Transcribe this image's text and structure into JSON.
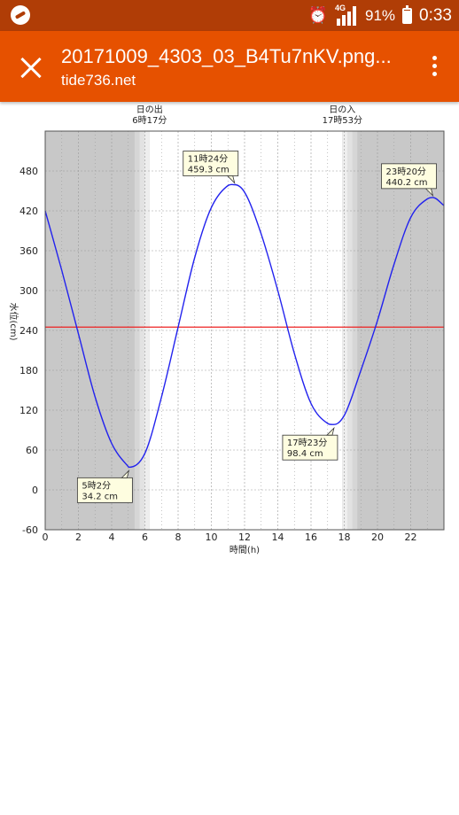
{
  "status_bar": {
    "network": "4G",
    "battery": "91%",
    "battery_level": 0.91,
    "time": "0:33",
    "icons": [
      "app-logo-icon",
      "alarm-icon",
      "signal-icon",
      "battery-icon"
    ]
  },
  "app_bar": {
    "title": "20171009_4303_03_B4Tu7nKV.png...",
    "subtitle": "tide736.net",
    "icons": [
      "close-icon",
      "more-vert-icon"
    ],
    "color": "#e65100"
  },
  "chart_data": {
    "type": "line",
    "xlabel": "時間(h)",
    "ylabel": "水位(cm)",
    "xlim": [
      0,
      24
    ],
    "ylim": [
      -60,
      540
    ],
    "x_ticks": [
      0,
      2,
      4,
      6,
      8,
      10,
      12,
      14,
      16,
      18,
      20,
      22
    ],
    "y_ticks": [
      -60,
      0,
      60,
      120,
      180,
      240,
      300,
      360,
      420,
      480
    ],
    "grid": true,
    "series": [
      {
        "color": "#2222ee",
        "x": [
          0,
          1,
          2,
          3,
          4,
          5,
          5.0333,
          6,
          7,
          8,
          9,
          10,
          11,
          11.4,
          12,
          13,
          14,
          15,
          16,
          17,
          17.3833,
          18,
          19,
          20,
          21,
          22,
          23,
          23.3333,
          24
        ],
        "values": [
          420,
          330,
          235,
          140,
          70,
          35,
          34.2,
          55,
          140,
          245,
          350,
          425,
          458,
          459.3,
          448,
          385,
          300,
          205,
          130,
          100,
          98.4,
          112,
          180,
          255,
          340,
          410,
          438,
          440.2,
          428
        ]
      }
    ],
    "reference_line": {
      "value": 245,
      "color": "#ee2222"
    },
    "sun": {
      "sunrise": {
        "label": "日の出",
        "time": "6時17分",
        "hour": 6.2833
      },
      "sunset": {
        "label": "日の入",
        "time": "17時53分",
        "hour": 17.8833
      }
    },
    "annotations": [
      {
        "time": "5時2分",
        "value": "34.2 cm",
        "x": 5.0333,
        "y": 34.2,
        "placement": "below-left"
      },
      {
        "time": "11時24分",
        "value": "459.3 cm",
        "x": 11.4,
        "y": 459.3,
        "placement": "above-left"
      },
      {
        "time": "17時23分",
        "value": "98.4 cm",
        "x": 17.3833,
        "y": 98.4,
        "placement": "below-left"
      },
      {
        "time": "23時20分",
        "value": "440.2 cm",
        "x": 23.3333,
        "y": 440.2,
        "placement": "above-left"
      }
    ],
    "colors": {
      "night": "#c8c8c8",
      "day": "#ffffff",
      "grid": "#999999"
    }
  }
}
